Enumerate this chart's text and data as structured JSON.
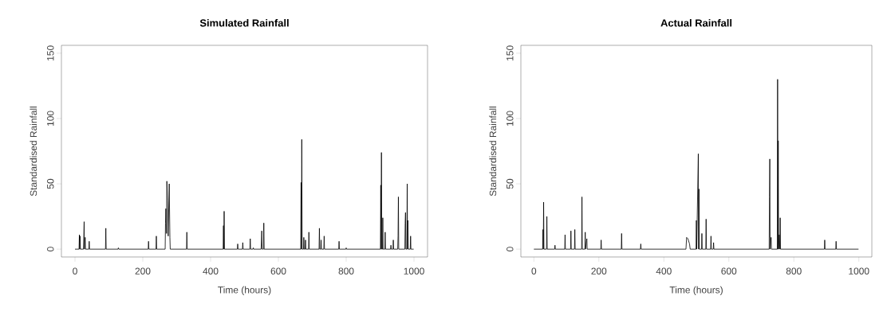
{
  "chart_data": [
    {
      "type": "line",
      "title": "Simulated Rainfall",
      "xlabel": "Time (hours)",
      "ylabel": "Standardised Rainfall",
      "color": "#000000",
      "xlim": [
        -40,
        1040
      ],
      "ylim": [
        -6,
        156
      ],
      "xticks": [
        0,
        200,
        400,
        600,
        800,
        1000
      ],
      "yticks": [
        0,
        50,
        100,
        150
      ],
      "x": [
        0,
        12,
        13,
        14,
        15,
        16,
        25,
        26,
        27,
        28,
        30,
        31,
        41,
        42,
        43,
        90,
        91,
        92,
        127,
        128,
        129,
        216,
        217,
        218,
        239,
        240,
        241,
        266,
        267,
        268,
        270,
        271,
        273,
        275,
        278,
        280,
        281,
        329,
        330,
        331,
        437,
        438,
        439,
        440,
        441,
        479,
        480,
        481,
        494,
        495,
        496,
        516,
        517,
        518,
        525,
        526,
        527,
        549,
        551,
        552,
        556,
        557,
        558,
        666,
        667,
        668,
        669,
        670,
        674,
        675,
        676,
        679,
        680,
        681,
        689,
        690,
        691,
        720,
        721,
        722,
        725,
        726,
        727,
        734,
        735,
        736,
        778,
        779,
        780,
        799,
        800,
        801,
        901,
        902,
        903,
        904,
        905,
        907,
        908,
        909,
        914,
        915,
        916,
        931,
        932,
        933,
        938,
        939,
        940,
        952,
        953,
        954,
        955,
        973,
        974,
        975,
        976,
        979,
        980,
        981,
        982,
        983,
        989,
        990,
        991,
        999
      ],
      "values": [
        0,
        0,
        11,
        0,
        10,
        0,
        0,
        10,
        21,
        0,
        9,
        0,
        0,
        6,
        0,
        0,
        16,
        0,
        0,
        1,
        0,
        0,
        6,
        0,
        0,
        10,
        0,
        0,
        20,
        31,
        12,
        52,
        37,
        10,
        50,
        9,
        0,
        0,
        13,
        0,
        0,
        18,
        0,
        29,
        0,
        0,
        4,
        0,
        0,
        5,
        0,
        0,
        8,
        0,
        0,
        1,
        0,
        0,
        14,
        0,
        0,
        20,
        0,
        0,
        51,
        0,
        84,
        0,
        0,
        9,
        0,
        0,
        7,
        0,
        0,
        13,
        0,
        0,
        16,
        0,
        0,
        7,
        0,
        0,
        10,
        0,
        0,
        6,
        0,
        0,
        1,
        0,
        0,
        49,
        0,
        74,
        0,
        0,
        24,
        0,
        0,
        13,
        0,
        0,
        3,
        0,
        0,
        7,
        0,
        0,
        10,
        40,
        0,
        0,
        20,
        28,
        0,
        0,
        50,
        0,
        22,
        0,
        0,
        10,
        0,
        0
      ]
    },
    {
      "type": "line",
      "title": "Actual Rainfall",
      "xlabel": "Time (hours)",
      "ylabel": "Standardised Rainfall",
      "color": "#000000",
      "xlim": [
        -40,
        1040
      ],
      "ylim": [
        -6,
        156
      ],
      "xticks": [
        0,
        200,
        400,
        600,
        800,
        1000
      ],
      "yticks": [
        0,
        50,
        100,
        150
      ],
      "x": [
        0,
        27,
        28,
        29,
        30,
        31,
        39,
        40,
        41,
        64,
        65,
        66,
        95,
        96,
        97,
        113,
        114,
        115,
        125,
        126,
        127,
        147,
        148,
        149,
        157,
        158,
        159,
        163,
        164,
        206,
        207,
        208,
        269,
        270,
        271,
        328,
        329,
        330,
        468,
        470,
        474,
        479,
        481,
        499,
        500,
        501,
        506,
        507,
        508,
        509,
        516,
        517,
        518,
        529,
        530,
        531,
        544,
        545,
        546,
        552,
        553,
        554,
        724,
        725,
        726,
        727,
        730,
        731,
        749,
        750,
        751,
        752,
        753,
        755,
        757,
        758,
        759,
        894,
        895,
        896,
        929,
        930,
        931,
        999
      ],
      "values": [
        0,
        0,
        15,
        0,
        36,
        0,
        0,
        25,
        0,
        0,
        3,
        0,
        0,
        11,
        0,
        0,
        14,
        0,
        0,
        15,
        0,
        0,
        40,
        0,
        0,
        13,
        0,
        8,
        0,
        0,
        7,
        0,
        0,
        12,
        0,
        0,
        4,
        0,
        0,
        9,
        8,
        4,
        0,
        0,
        22,
        0,
        73,
        0,
        46,
        0,
        0,
        12,
        0,
        0,
        23,
        0,
        0,
        10,
        0,
        0,
        5,
        0,
        0,
        40,
        69,
        0,
        9,
        0,
        0,
        130,
        0,
        83,
        0,
        11,
        0,
        24,
        0,
        0,
        7,
        0,
        0,
        6,
        0,
        0
      ]
    }
  ]
}
